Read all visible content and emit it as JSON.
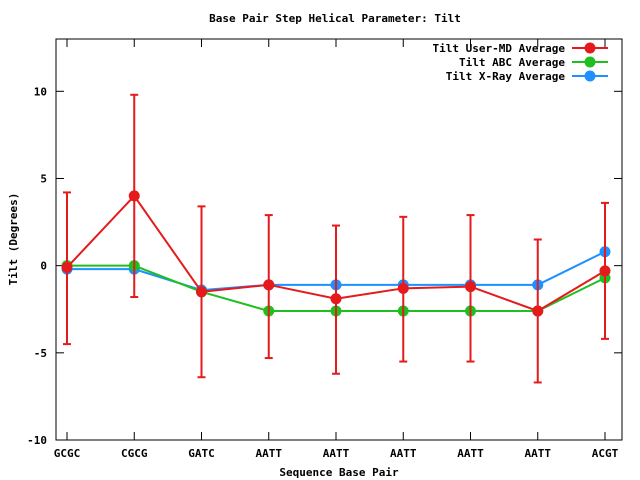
{
  "chart_data": {
    "type": "line",
    "title": "Base Pair Step Helical Parameter: Tilt",
    "xlabel": "Sequence Base Pair",
    "ylabel": "Tilt (Degrees)",
    "ylim": [
      -10,
      13
    ],
    "yticks": [
      -10,
      -5,
      0,
      5,
      10
    ],
    "categories": [
      "GCGC",
      "CGCG",
      "GATC",
      "AATT",
      "AATT",
      "AATT",
      "AATT",
      "AATT",
      "ACGT"
    ],
    "legend_position": "top-right",
    "grid": false,
    "series": [
      {
        "name": "Tilt User-MD Average",
        "color": "#e41a1c",
        "values": [
          -0.1,
          4.0,
          -1.5,
          -1.1,
          -1.9,
          -1.3,
          -1.2,
          -2.6,
          -0.3
        ],
        "error": [
          [
            -4.5,
            4.2
          ],
          [
            -1.8,
            9.8
          ],
          [
            -6.4,
            3.4
          ],
          [
            -5.3,
            2.9
          ],
          [
            -6.2,
            2.3
          ],
          [
            -5.5,
            2.8
          ],
          [
            -5.5,
            2.9
          ],
          [
            -6.7,
            1.5
          ],
          [
            -4.2,
            3.6
          ]
        ]
      },
      {
        "name": "Tilt ABC Average",
        "color": "#1fbf1f",
        "values": [
          0.0,
          0.0,
          -1.5,
          -2.6,
          -2.6,
          -2.6,
          -2.6,
          -2.6,
          -0.7
        ]
      },
      {
        "name": "Tilt X-Ray Average",
        "color": "#1e90ff",
        "values": [
          -0.2,
          -0.2,
          -1.4,
          -1.1,
          -1.1,
          -1.1,
          -1.1,
          -1.1,
          0.8
        ]
      }
    ]
  }
}
